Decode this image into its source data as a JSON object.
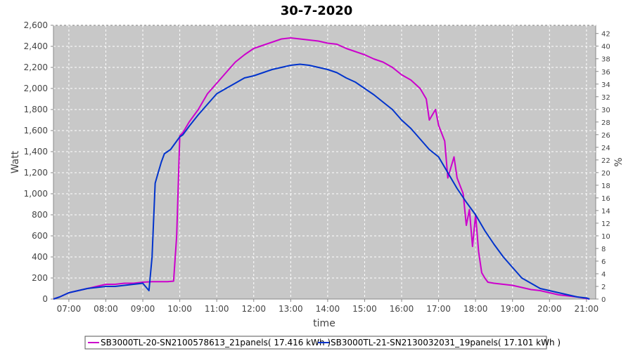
{
  "chart_data": {
    "type": "line",
    "title": "30-7-2020",
    "xlabel": "time",
    "ylabel": "Watt",
    "y2label": "%",
    "xlim": [
      "06:35",
      "21:15"
    ],
    "ylim": [
      0,
      2600
    ],
    "y2lim": [
      0,
      43.3
    ],
    "grid": true,
    "legend_position": "bottom",
    "x_ticks": [
      "07:00",
      "08:00",
      "09:00",
      "10:00",
      "11:00",
      "12:00",
      "13:00",
      "14:00",
      "15:00",
      "16:00",
      "17:00",
      "18:00",
      "19:00",
      "20:00",
      "21:00"
    ],
    "y_ticks": [
      "0",
      "200",
      "400",
      "600",
      "800",
      "1,000",
      "1,200",
      "1,400",
      "1,600",
      "1,800",
      "2,000",
      "2,200",
      "2,400",
      "2,600"
    ],
    "y2_ticks": [
      "0",
      "2",
      "4",
      "6",
      "8",
      "10",
      "12",
      "14",
      "16",
      "18",
      "20",
      "22",
      "24",
      "26",
      "28",
      "30",
      "32",
      "34",
      "36",
      "38",
      "40",
      "42"
    ],
    "series": [
      {
        "name": "SB3000TL-20-SN2100578613_21panels( 17.416 kWh )",
        "color": "#cc00cc",
        "x": [
          "06:35",
          "06:45",
          "07:00",
          "07:15",
          "07:30",
          "07:45",
          "08:00",
          "08:15",
          "08:30",
          "08:45",
          "09:00",
          "09:15",
          "09:30",
          "09:40",
          "09:50",
          "09:55",
          "10:00",
          "10:05",
          "10:15",
          "10:30",
          "10:45",
          "11:00",
          "11:15",
          "11:30",
          "11:45",
          "12:00",
          "12:15",
          "12:30",
          "12:45",
          "13:00",
          "13:15",
          "13:30",
          "13:45",
          "14:00",
          "14:15",
          "14:30",
          "14:45",
          "15:00",
          "15:15",
          "15:30",
          "15:45",
          "16:00",
          "16:15",
          "16:30",
          "16:40",
          "16:45",
          "16:55",
          "17:00",
          "17:10",
          "17:15",
          "17:25",
          "17:30",
          "17:40",
          "17:45",
          "17:50",
          "17:55",
          "18:00",
          "18:05",
          "18:10",
          "18:15",
          "18:20",
          "18:30",
          "18:45",
          "19:00",
          "19:15",
          "19:30",
          "19:45",
          "20:00",
          "20:15",
          "20:30",
          "20:45",
          "21:00",
          "21:05"
        ],
        "values": [
          0,
          20,
          60,
          80,
          100,
          120,
          140,
          140,
          150,
          150,
          160,
          165,
          165,
          165,
          170,
          600,
          1550,
          1580,
          1680,
          1800,
          1950,
          2050,
          2150,
          2250,
          2320,
          2380,
          2410,
          2440,
          2470,
          2480,
          2470,
          2460,
          2450,
          2430,
          2420,
          2380,
          2350,
          2320,
          2280,
          2250,
          2200,
          2130,
          2080,
          2000,
          1900,
          1700,
          1800,
          1650,
          1500,
          1150,
          1350,
          1150,
          1000,
          700,
          850,
          500,
          800,
          450,
          250,
          200,
          160,
          150,
          140,
          130,
          110,
          90,
          80,
          60,
          40,
          30,
          20,
          5,
          0
        ]
      },
      {
        "name": "SB3000TL-21-SN2130032031_19panels( 17.101 kWh )",
        "color": "#0033cc",
        "x": [
          "06:35",
          "06:45",
          "07:00",
          "07:15",
          "07:30",
          "07:45",
          "08:00",
          "08:15",
          "08:30",
          "08:45",
          "09:00",
          "09:10",
          "09:15",
          "09:20",
          "09:25",
          "09:30",
          "09:35",
          "09:45",
          "09:55",
          "10:00",
          "10:05",
          "10:15",
          "10:30",
          "10:45",
          "11:00",
          "11:15",
          "11:30",
          "11:45",
          "12:00",
          "12:15",
          "12:30",
          "12:45",
          "13:00",
          "13:15",
          "13:30",
          "13:45",
          "14:00",
          "14:15",
          "14:30",
          "14:45",
          "15:00",
          "15:15",
          "15:30",
          "15:45",
          "16:00",
          "16:15",
          "16:30",
          "16:45",
          "17:00",
          "17:15",
          "17:30",
          "17:45",
          "18:00",
          "18:15",
          "18:30",
          "18:45",
          "19:00",
          "19:15",
          "19:30",
          "19:45",
          "20:00",
          "20:15",
          "20:30",
          "20:45",
          "21:00",
          "21:05"
        ],
        "values": [
          0,
          20,
          60,
          80,
          100,
          110,
          120,
          120,
          130,
          140,
          150,
          80,
          400,
          1100,
          1200,
          1300,
          1380,
          1420,
          1500,
          1540,
          1560,
          1640,
          1750,
          1850,
          1950,
          2000,
          2050,
          2100,
          2120,
          2150,
          2180,
          2200,
          2220,
          2230,
          2220,
          2200,
          2180,
          2150,
          2100,
          2060,
          2000,
          1940,
          1870,
          1800,
          1700,
          1620,
          1520,
          1420,
          1350,
          1200,
          1050,
          920,
          800,
          650,
          520,
          400,
          300,
          200,
          150,
          100,
          80,
          60,
          40,
          20,
          10,
          0
        ]
      }
    ]
  }
}
